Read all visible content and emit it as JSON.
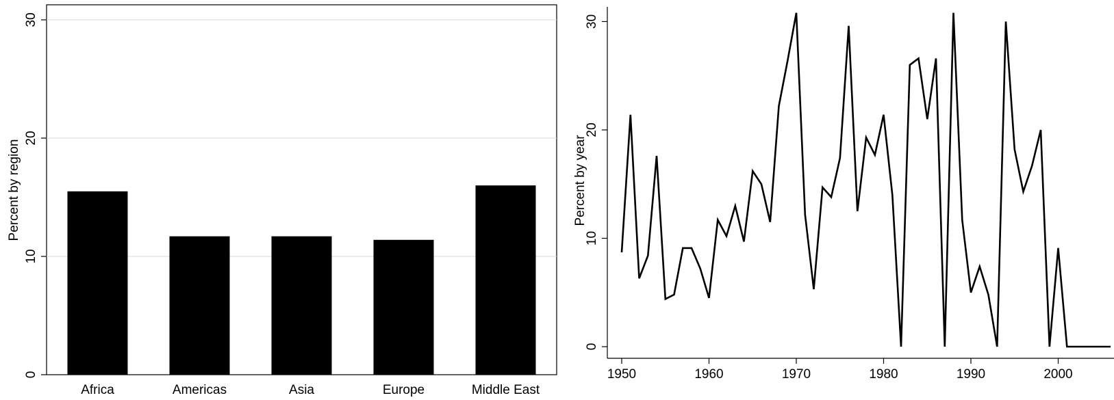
{
  "chart_data": [
    {
      "type": "bar",
      "categories": [
        "Africa",
        "Americas",
        "Asia",
        "Europe",
        "Middle East"
      ],
      "values": [
        15.5,
        11.7,
        11.7,
        11.4,
        16.0
      ],
      "ylabel": "Percent by region",
      "ylim": [
        0,
        31
      ],
      "yticks": [
        "0",
        "10",
        "20",
        "30"
      ],
      "grid": true,
      "bar_color": "#000000"
    },
    {
      "type": "line",
      "x": [
        1950,
        1951,
        1952,
        1953,
        1954,
        1955,
        1956,
        1957,
        1958,
        1959,
        1960,
        1961,
        1962,
        1963,
        1964,
        1965,
        1966,
        1967,
        1968,
        1969,
        1970,
        1971,
        1972,
        1973,
        1974,
        1975,
        1976,
        1977,
        1978,
        1979,
        1980,
        1981,
        1982,
        1983,
        1984,
        1985,
        1986,
        1987,
        1988,
        1989,
        1990,
        1991,
        1992,
        1993,
        1994,
        1995,
        1996,
        1997,
        1998,
        1999,
        2000,
        2001,
        2002,
        2003,
        2004,
        2005,
        2006
      ],
      "series": [
        {
          "values": [
            8.7,
            21.4,
            6.3,
            8.4,
            17.6,
            4.4,
            4.8,
            9.1,
            9.1,
            7.2,
            4.5,
            11.7,
            10.2,
            13.0,
            9.7,
            16.2,
            15.0,
            11.5,
            22.2,
            26.4,
            30.8,
            12.2,
            5.3,
            14.7,
            13.8,
            17.4,
            29.6,
            12.5,
            19.3,
            17.7,
            21.4,
            14.0,
            0.0,
            26.0,
            26.6,
            21.0,
            26.6,
            0.0,
            30.8,
            11.7,
            5.0,
            7.4,
            4.8,
            0.0,
            30.0,
            18.2,
            14.3,
            16.7,
            20.0,
            0.0,
            9.1,
            0.0,
            0.0,
            0.0,
            0.0,
            0.0,
            0.0
          ]
        }
      ],
      "ylabel": "Percent by year",
      "xticks": [
        "1950",
        "1960",
        "1970",
        "1980",
        "1990",
        "2000"
      ],
      "yticks": [
        "0",
        "10",
        "20",
        "30"
      ],
      "grid": false,
      "line_color": "#000000"
    }
  ]
}
